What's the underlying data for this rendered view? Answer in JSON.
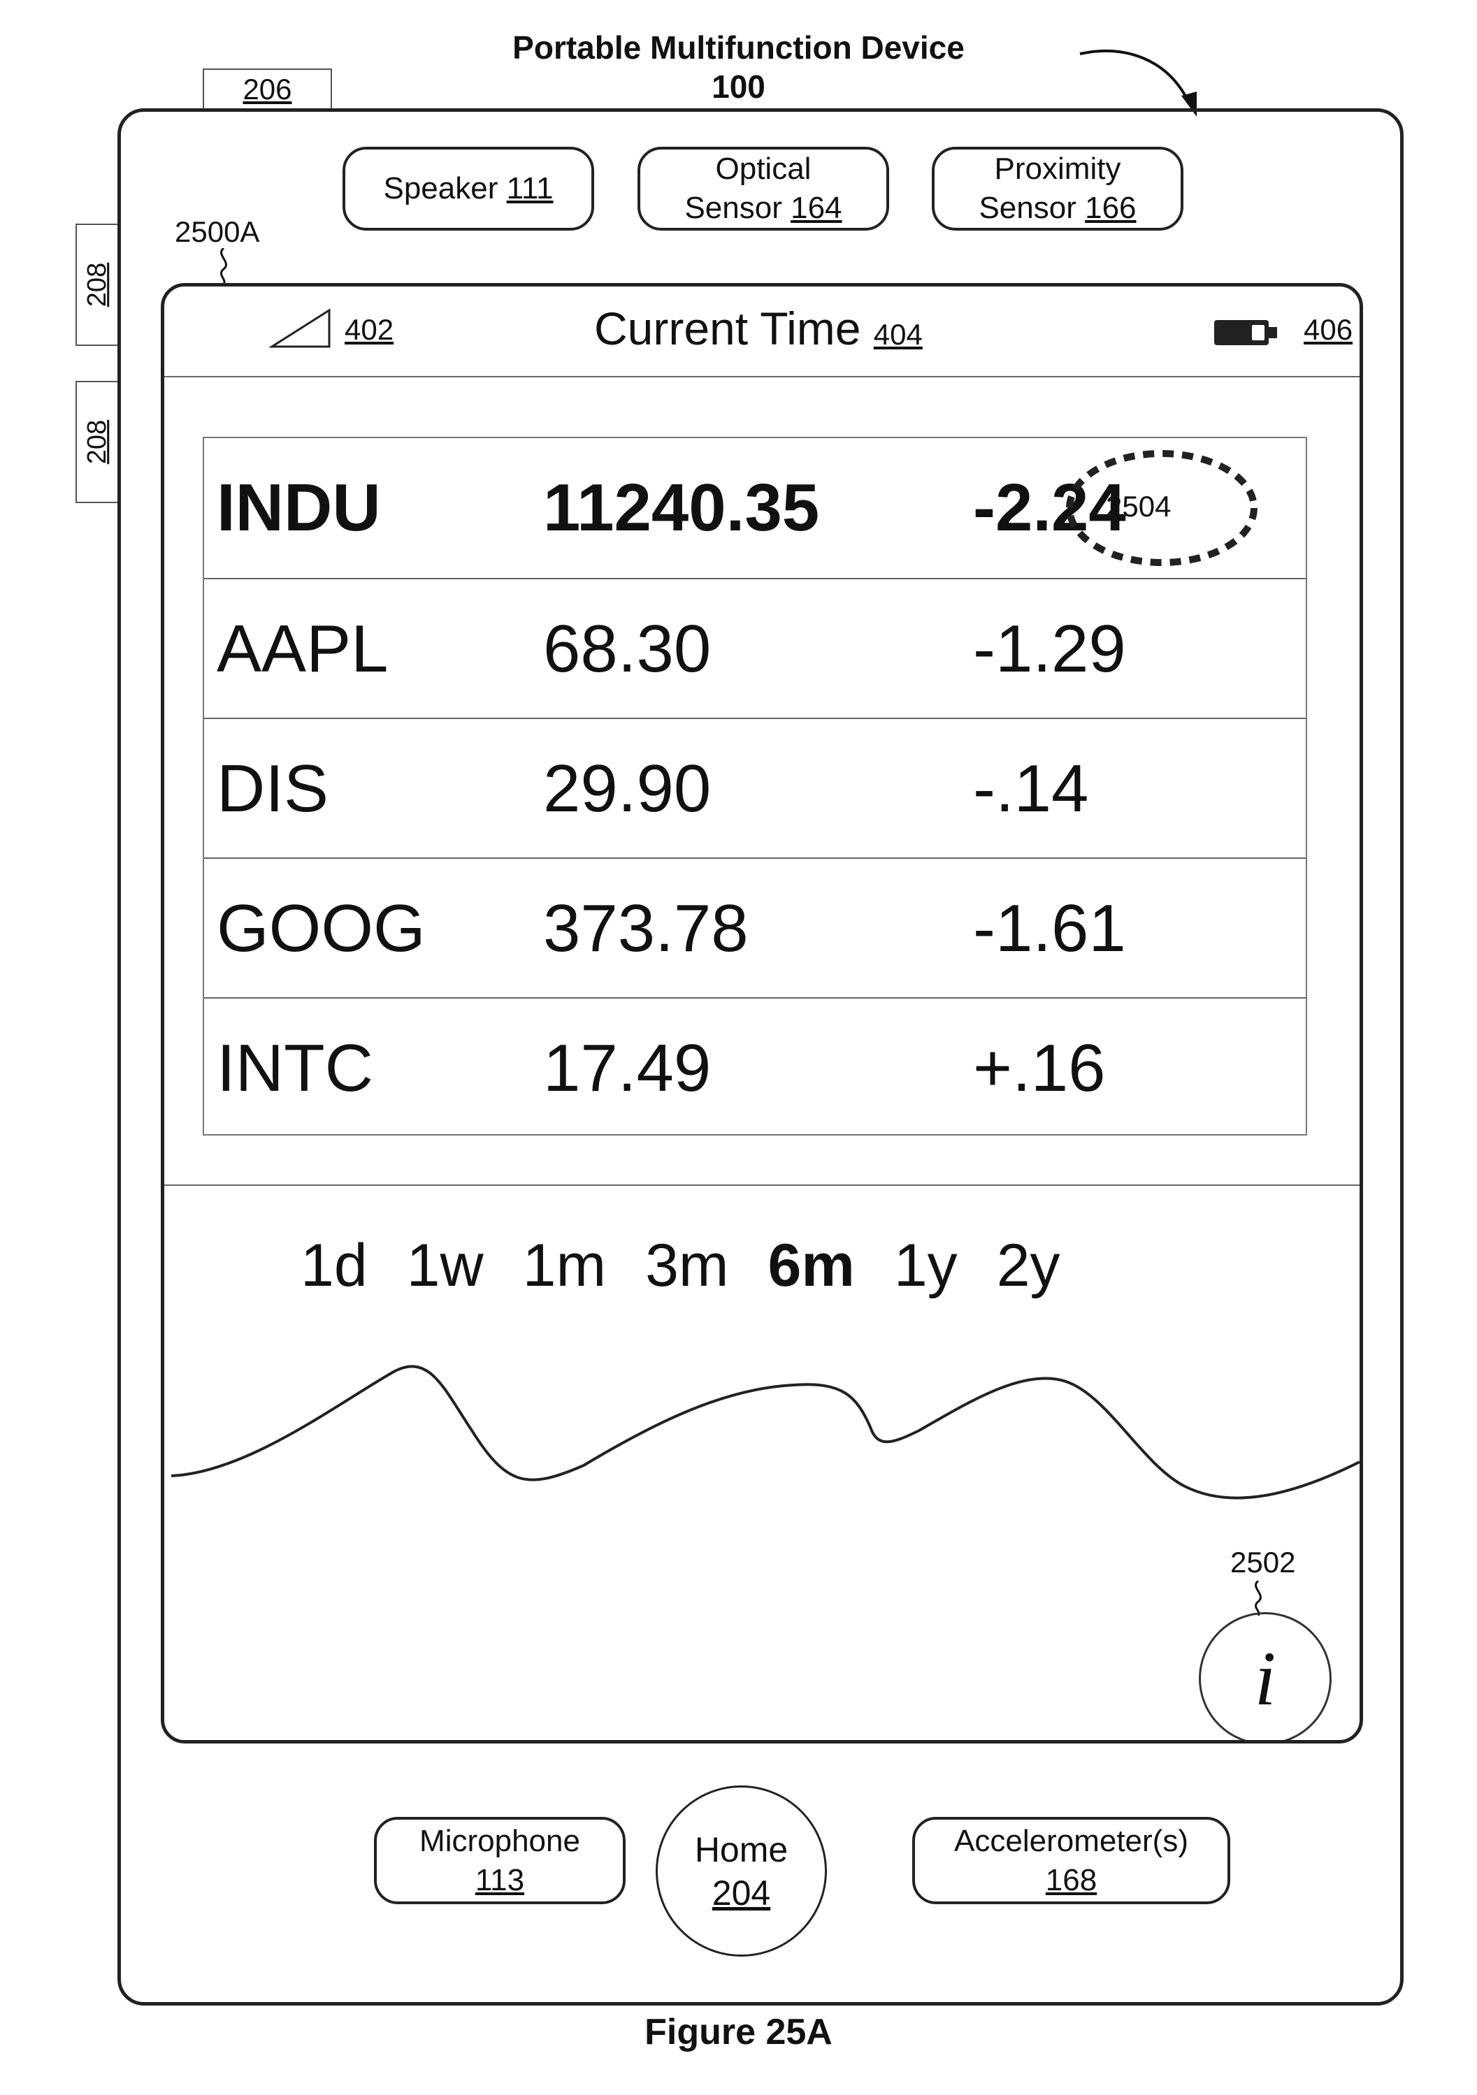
{
  "figure": {
    "title": "Portable Multifunction Device",
    "device_number": "100",
    "caption": "Figure 25A"
  },
  "hardware": {
    "top_ref": "206",
    "side_refs": [
      "208",
      "208"
    ],
    "speaker": {
      "label": "Speaker",
      "ref": "111"
    },
    "optical_sensor": {
      "line1": "Optical",
      "line2": "Sensor",
      "ref": "164"
    },
    "proximity_sensor": {
      "line1": "Proximity",
      "line2": "Sensor",
      "ref": "166"
    },
    "microphone": {
      "label": "Microphone",
      "ref": "113"
    },
    "home": {
      "label": "Home",
      "ref": "204"
    },
    "accelerometer": {
      "label": "Accelerometer(s)",
      "ref": "168"
    }
  },
  "screen": {
    "ref": "2500A",
    "status": {
      "signal_ref": "402",
      "time_label": "Current Time",
      "time_ref": "404",
      "battery_ref": "406"
    },
    "stocks": [
      {
        "symbol": "INDU",
        "price": "11240.35",
        "change": "-2.24",
        "bold": true
      },
      {
        "symbol": "AAPL",
        "price": "68.30",
        "change": "-1.29",
        "bold": false
      },
      {
        "symbol": "DIS",
        "price": "29.90",
        "change": "-.14",
        "bold": false
      },
      {
        "symbol": "GOOG",
        "price": "373.78",
        "change": "-1.61",
        "bold": false
      },
      {
        "symbol": "INTC",
        "price": "17.49",
        "change": "+.16",
        "bold": false
      }
    ],
    "contact_ref": "2504",
    "ranges": [
      "1d",
      "1w",
      "1m",
      "3m",
      "6m",
      "1y",
      "2y"
    ],
    "selected_range": "6m",
    "info_button": {
      "label": "i",
      "ref": "2502"
    }
  }
}
